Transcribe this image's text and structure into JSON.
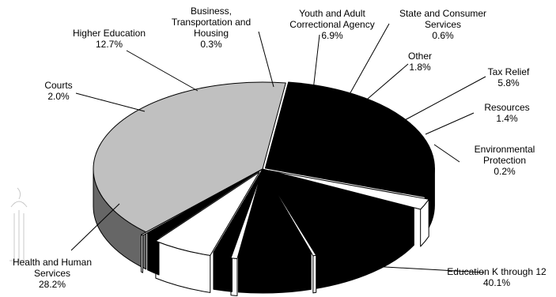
{
  "chart_data": {
    "type": "pie",
    "style": "3d-exploded",
    "start_category": "Education K through 12",
    "direction": "clockwise",
    "slices": [
      {
        "label": [
          "Education K through 12"
        ],
        "pct_text": "40.1%",
        "value": 40.1,
        "color": "#c0c0c0",
        "side_color": "#666666"
      },
      {
        "label": [
          "Health and Human",
          "Services"
        ],
        "pct_text": "28.2%",
        "value": 28.2,
        "color": "#000000",
        "side_color": "#000000"
      },
      {
        "label": [
          "Courts"
        ],
        "pct_text": "2.0%",
        "value": 2.0,
        "color": "#ffffff",
        "side_color": "#ffffff"
      },
      {
        "label": [
          "Higher Education"
        ],
        "pct_text": "12.7%",
        "value": 12.7,
        "color": "#000000",
        "side_color": "#000000"
      },
      {
        "label": [
          "Business,",
          "Transportation and",
          "Housing"
        ],
        "pct_text": "0.3%",
        "value": 0.3,
        "color": "#ffffff",
        "side_color": "#ffffff"
      },
      {
        "label": [
          "Youth and Adult",
          "Correctional Agency"
        ],
        "pct_text": "6.9%",
        "value": 6.9,
        "color": "#000000",
        "side_color": "#000000"
      },
      {
        "label": [
          "State and Consumer",
          "Services"
        ],
        "pct_text": "0.6%",
        "value": 0.6,
        "color": "#ffffff",
        "side_color": "#ffffff"
      },
      {
        "label": [
          "Other"
        ],
        "pct_text": "1.8%",
        "value": 1.8,
        "color": "#000000",
        "side_color": "#000000"
      },
      {
        "label": [
          "Tax Relief"
        ],
        "pct_text": "5.8%",
        "value": 5.8,
        "color": "#ffffff",
        "side_color": "#ffffff"
      },
      {
        "label": [
          "Resources"
        ],
        "pct_text": "1.4%",
        "value": 1.4,
        "color": "#000000",
        "side_color": "#000000"
      },
      {
        "label": [
          "Environmental",
          "Protection"
        ],
        "pct_text": "0.2%",
        "value": 0.2,
        "color": "#ffffff",
        "side_color": "#ffffff"
      }
    ]
  }
}
